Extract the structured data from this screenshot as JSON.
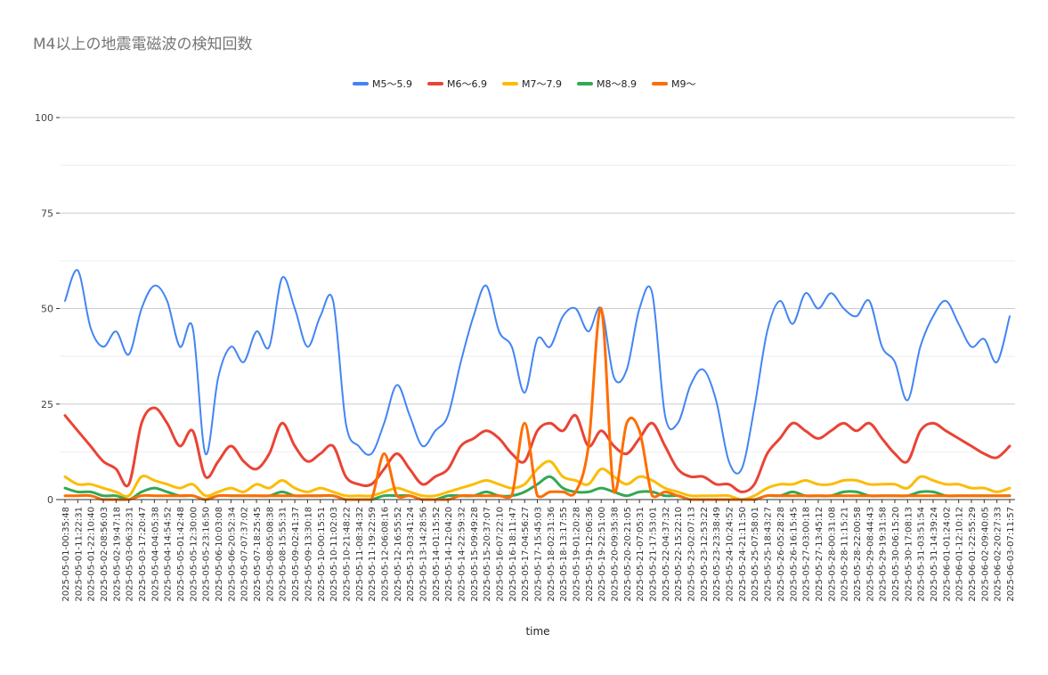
{
  "chart_data": {
    "type": "line",
    "title": "M4以上の地震電磁波の検知回数",
    "xlabel": "time",
    "ylabel": "",
    "ylim": [
      0,
      100
    ],
    "yticks": [
      0,
      25,
      50,
      75,
      100
    ],
    "grid": true,
    "legend_position": "top",
    "x": [
      "2025-05-01-00:35:48",
      "2025-05-01-11:22:31",
      "2025-05-01-22:10:40",
      "2025-05-02-08:56:03",
      "2025-05-02-19:47:18",
      "2025-05-03-06:32:31",
      "2025-05-03-17:20:47",
      "2025-05-04-04:05:38",
      "2025-05-04-14:54:52",
      "2025-05-05-01:42:48",
      "2025-05-05-12:30:00",
      "2025-05-05-23:16:50",
      "2025-05-06-10:03:08",
      "2025-05-06-20:52:34",
      "2025-05-07-07:37:02",
      "2025-05-07-18:25:45",
      "2025-05-08-05:08:38",
      "2025-05-08-15:55:31",
      "2025-05-09-02:41:37",
      "2025-05-09-13:30:18",
      "2025-05-10-00:15:51",
      "2025-05-10-11:02:03",
      "2025-05-10-21:48:22",
      "2025-05-11-08:34:32",
      "2025-05-11-19:22:59",
      "2025-05-12-06:08:16",
      "2025-05-12-16:55:52",
      "2025-05-13-03:41:24",
      "2025-05-13-14:28:56",
      "2025-05-14-01:15:52",
      "2025-05-14-12:04:20",
      "2025-05-14-22:59:32",
      "2025-05-15-09:49:28",
      "2025-05-15-20:37:07",
      "2025-05-16-07:22:10",
      "2025-05-16-18:11:47",
      "2025-05-17-04:56:27",
      "2025-05-17-15:45:03",
      "2025-05-18-02:31:36",
      "2025-05-18-13:17:55",
      "2025-05-19-01:20:28",
      "2025-05-19-12:06:36",
      "2025-05-19-22:51:00",
      "2025-05-20-09:35:38",
      "2025-05-20-20:21:05",
      "2025-05-21-07:05:31",
      "2025-05-21-17:53:01",
      "2025-05-22-04:37:32",
      "2025-05-22-15:22:10",
      "2025-05-23-02:07:13",
      "2025-05-23-12:53:22",
      "2025-05-23-23:38:49",
      "2025-05-24-10:24:52",
      "2025-05-24-21:11:50",
      "2025-05-25-07:58:01",
      "2025-05-25-18:43:27",
      "2025-05-26-05:28:28",
      "2025-05-26-16:15:45",
      "2025-05-27-03:00:18",
      "2025-05-27-13:45:12",
      "2025-05-28-00:31:08",
      "2025-05-28-11:15:21",
      "2025-05-28-22:00:58",
      "2025-05-29-08:44:43",
      "2025-05-29-19:31:58",
      "2025-05-30-06:15:20",
      "2025-05-30-17:08:13",
      "2025-05-31-03:51:54",
      "2025-05-31-14:39:24",
      "2025-06-01-01:24:02",
      "2025-06-01-12:10:12",
      "2025-06-01-22:55:29",
      "2025-06-02-09:40:05",
      "2025-06-02-20:27:33",
      "2025-06-03-07:11:57"
    ],
    "series": [
      {
        "name": "M5〜5.9",
        "color": "#4285f4",
        "values": [
          52,
          60,
          45,
          40,
          44,
          38,
          50,
          56,
          52,
          40,
          45,
          12,
          32,
          40,
          36,
          44,
          40,
          58,
          50,
          40,
          48,
          52,
          20,
          14,
          12,
          20,
          30,
          22,
          14,
          18,
          22,
          36,
          48,
          56,
          44,
          40,
          28,
          42,
          40,
          48,
          50,
          44,
          50,
          32,
          34,
          50,
          54,
          22,
          20,
          30,
          34,
          26,
          10,
          8,
          24,
          44,
          52,
          46,
          54,
          50,
          54,
          50,
          48,
          52,
          40,
          36,
          26,
          40,
          48,
          52,
          46,
          40,
          42,
          36,
          48
        ]
      },
      {
        "name": "M6〜6.9",
        "color": "#ea4335",
        "values": [
          22,
          18,
          14,
          10,
          8,
          4,
          20,
          24,
          20,
          14,
          18,
          6,
          10,
          14,
          10,
          8,
          12,
          20,
          14,
          10,
          12,
          14,
          6,
          4,
          4,
          8,
          12,
          8,
          4,
          6,
          8,
          14,
          16,
          18,
          16,
          12,
          10,
          18,
          20,
          18,
          22,
          14,
          18,
          14,
          12,
          16,
          20,
          14,
          8,
          6,
          6,
          4,
          4,
          2,
          4,
          12,
          16,
          20,
          18,
          16,
          18,
          20,
          18,
          20,
          16,
          12,
          10,
          18,
          20,
          18,
          16,
          14,
          12,
          11,
          14
        ]
      },
      {
        "name": "M7〜7.9",
        "color": "#fbbc04",
        "values": [
          6,
          4,
          4,
          3,
          2,
          1,
          6,
          5,
          4,
          3,
          4,
          1,
          2,
          3,
          2,
          4,
          3,
          5,
          3,
          2,
          3,
          2,
          1,
          1,
          1,
          2,
          3,
          2,
          1,
          1,
          2,
          3,
          4,
          5,
          4,
          3,
          4,
          8,
          10,
          6,
          5,
          4,
          8,
          6,
          4,
          6,
          5,
          3,
          2,
          1,
          1,
          1,
          1,
          0,
          1,
          3,
          4,
          4,
          5,
          4,
          4,
          5,
          5,
          4,
          4,
          4,
          3,
          6,
          5,
          4,
          4,
          3,
          3,
          2,
          3
        ]
      },
      {
        "name": "M8〜8.9",
        "color": "#34a853",
        "values": [
          3,
          2,
          2,
          1,
          1,
          0,
          2,
          3,
          2,
          1,
          1,
          0,
          1,
          1,
          1,
          1,
          1,
          2,
          1,
          1,
          1,
          1,
          0,
          0,
          0,
          1,
          1,
          1,
          0,
          0,
          1,
          1,
          1,
          2,
          1,
          1,
          2,
          4,
          6,
          3,
          2,
          2,
          3,
          2,
          1,
          2,
          2,
          1,
          1,
          0,
          0,
          0,
          0,
          0,
          0,
          1,
          1,
          2,
          1,
          1,
          1,
          2,
          2,
          1,
          1,
          1,
          1,
          2,
          2,
          1,
          1,
          1,
          1,
          1,
          1
        ]
      },
      {
        "name": "M9〜",
        "color": "#ff6d01",
        "values": [
          1,
          1,
          1,
          0,
          0,
          0,
          1,
          1,
          1,
          1,
          1,
          0,
          1,
          1,
          1,
          1,
          1,
          1,
          1,
          1,
          1,
          1,
          0,
          0,
          0,
          12,
          1,
          1,
          0,
          0,
          0,
          1,
          1,
          1,
          1,
          1,
          20,
          1,
          2,
          2,
          2,
          14,
          50,
          2,
          20,
          18,
          1,
          2,
          1,
          0,
          0,
          0,
          0,
          0,
          0,
          1,
          1,
          1,
          1,
          1,
          1,
          1,
          1,
          1,
          1,
          1,
          1,
          1,
          1,
          1,
          1,
          1,
          1,
          1,
          1
        ]
      }
    ]
  }
}
